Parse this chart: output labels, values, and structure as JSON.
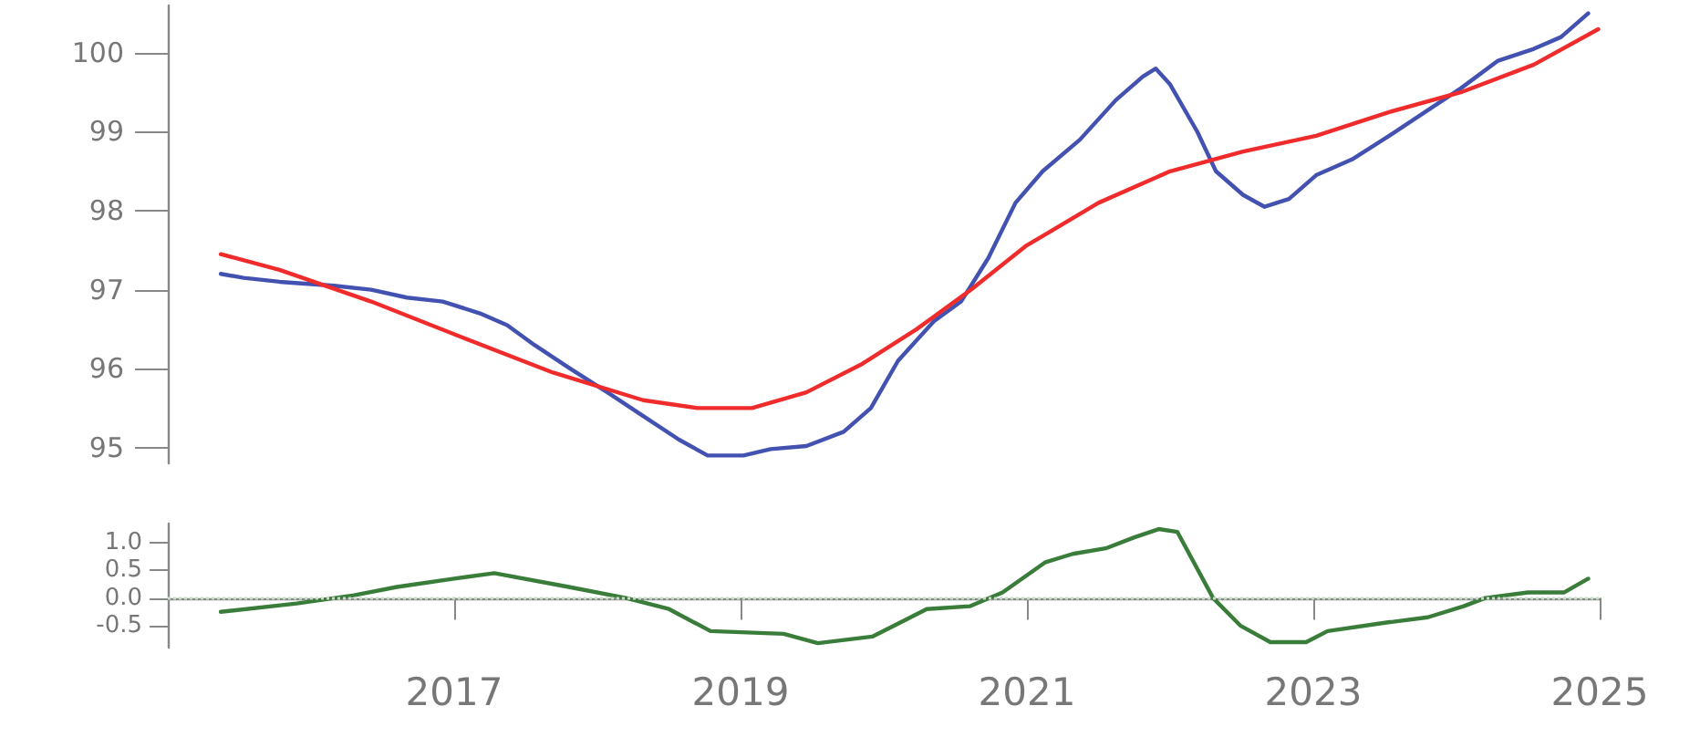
{
  "chart_data": [
    {
      "type": "line",
      "xlim": [
        2015,
        2025
      ],
      "ylim": [
        94.8,
        100.6
      ],
      "yticks": [
        95,
        96,
        97,
        98,
        99,
        100
      ],
      "tick_labels": "y",
      "grid": false,
      "marker": "none",
      "line_style": "solid",
      "series": [
        {
          "color": "#4352b0",
          "x": [
            2015.37,
            2015.53,
            2015.78,
            2016.16,
            2016.42,
            2016.67,
            2016.92,
            2017.18,
            2017.37,
            2017.56,
            2017.81,
            2018.07,
            2018.32,
            2018.57,
            2018.77,
            2019.02,
            2019.21,
            2019.46,
            2019.72,
            2019.91,
            2020.1,
            2020.35,
            2020.54,
            2020.73,
            2020.92,
            2021.11,
            2021.37,
            2021.62,
            2021.81,
            2021.9,
            2022.0,
            2022.19,
            2022.32,
            2022.51,
            2022.66,
            2022.83,
            2023.02,
            2023.27,
            2023.53,
            2023.78,
            2024.03,
            2024.29,
            2024.54,
            2024.73,
            2024.92
          ],
          "values": [
            97.2,
            97.15,
            97.1,
            97.05,
            97.0,
            96.9,
            96.85,
            96.7,
            96.55,
            96.3,
            96.0,
            95.7,
            95.4,
            95.1,
            94.9,
            94.9,
            94.98,
            95.02,
            95.2,
            95.5,
            96.1,
            96.6,
            96.85,
            97.4,
            98.1,
            98.5,
            98.9,
            99.4,
            99.7,
            99.8,
            99.6,
            99.0,
            98.5,
            98.2,
            98.05,
            98.15,
            98.45,
            98.65,
            98.95,
            99.25,
            99.55,
            99.9,
            100.05,
            100.2,
            100.5
          ]
        },
        {
          "color": "#f02b2b",
          "x": [
            2015.37,
            2015.78,
            2016.42,
            2017.05,
            2017.69,
            2018.32,
            2018.7,
            2019.08,
            2019.46,
            2019.84,
            2020.23,
            2020.61,
            2020.99,
            2021.5,
            2022.0,
            2022.51,
            2023.02,
            2023.53,
            2024.03,
            2024.54,
            2024.99
          ],
          "values": [
            97.45,
            97.25,
            96.85,
            96.4,
            95.95,
            95.6,
            95.5,
            95.5,
            95.7,
            96.05,
            96.5,
            97.0,
            97.55,
            98.1,
            98.5,
            98.75,
            98.95,
            99.25,
            99.5,
            99.85,
            100.3
          ]
        }
      ]
    },
    {
      "type": "line",
      "xlim": [
        2015,
        2025
      ],
      "xticks": [
        2017,
        2019,
        2021,
        2023,
        2025
      ],
      "ylim": [
        -0.9,
        1.35
      ],
      "yticks": [
        {
          "value": 1,
          "label": "1.0"
        },
        {
          "value": 0.5,
          "label": "0.5"
        },
        {
          "value": 0,
          "label": "0.0"
        },
        {
          "value": -0.5,
          "label": "-0.5"
        }
      ],
      "grid": false,
      "marker": "none",
      "line_style": "solid",
      "ref_lines": [
        {
          "axis": "y",
          "value": 0,
          "color": "#c9dcc9",
          "line_style": "dotted"
        }
      ],
      "series": [
        {
          "color": "#3a7d3a",
          "x": [
            2015.37,
            2015.9,
            2016.3,
            2016.6,
            2017.0,
            2017.28,
            2017.8,
            2018.2,
            2018.5,
            2018.79,
            2019.3,
            2019.54,
            2019.92,
            2020.15,
            2020.3,
            2020.6,
            2020.83,
            2021.13,
            2021.32,
            2021.55,
            2021.75,
            2021.92,
            2022.05,
            2022.3,
            2022.49,
            2022.7,
            2022.95,
            2023.1,
            2023.5,
            2023.8,
            2024.05,
            2024.2,
            2024.5,
            2024.75,
            2024.92
          ],
          "values": [
            -0.25,
            -0.1,
            0.05,
            0.2,
            0.35,
            0.45,
            0.2,
            0.0,
            -0.2,
            -0.6,
            -0.65,
            -0.82,
            -0.7,
            -0.4,
            -0.2,
            -0.15,
            0.1,
            0.65,
            0.8,
            0.9,
            1.1,
            1.25,
            1.2,
            0.0,
            -0.5,
            -0.8,
            -0.8,
            -0.6,
            -0.45,
            -0.35,
            -0.15,
            0.0,
            0.1,
            0.1,
            0.35
          ]
        }
      ]
    }
  ]
}
